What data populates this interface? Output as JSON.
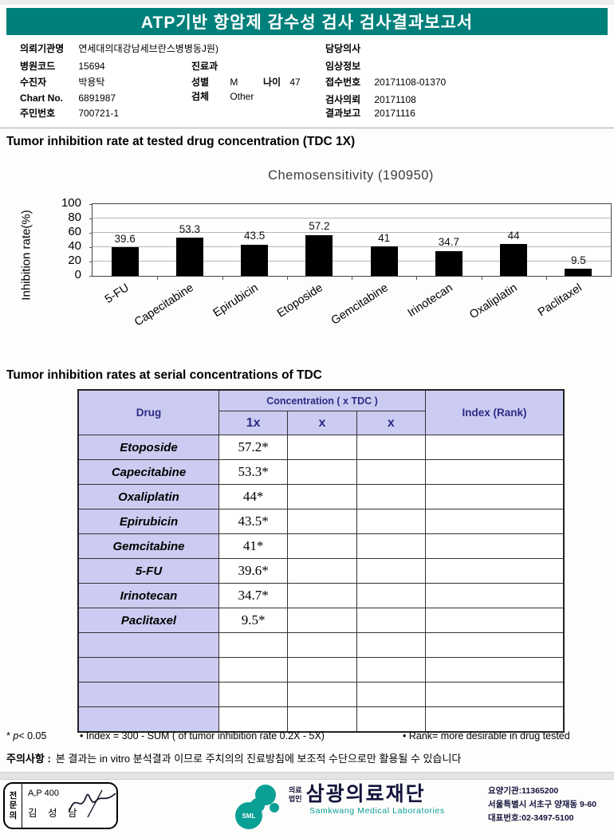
{
  "header": {
    "title": "ATP기반 항암제 감수성 검사 검사결과보고서"
  },
  "patient": {
    "org_label": "의뢰기관명",
    "org_value": "연세대의대강남세브란스병병동J원)",
    "hospital_code_label": "병원코드",
    "hospital_code_value": "15694",
    "patient_label": "수진자",
    "patient_value": "박용탁",
    "chart_no_label": "Chart No.",
    "chart_no_value": "6891987",
    "resident_label": "주민번호",
    "resident_value": "700721-1",
    "dept_label": "진료과",
    "dept_value": "",
    "sex_label": "성별",
    "sex_value": "M",
    "age_label": "나이",
    "age_value": "47",
    "specimen_label": "검체",
    "specimen_value": "Other",
    "doctor_label": "담당의사",
    "doctor_value": "",
    "clinical_label": "임상정보",
    "clinical_value": "",
    "receipt_label": "접수번호",
    "receipt_value": "20171108-01370",
    "request_label": "검사의뢰",
    "request_value": "20171108",
    "report_label": "결과보고",
    "report_value": "20171116"
  },
  "section1_title": "Tumor inhibition rate at tested drug concentration (TDC 1X)",
  "chart_data": {
    "type": "bar",
    "title": "Chemosensitivity (190950)",
    "categories": [
      "5-FU",
      "Capecitabine",
      "Epirubicin",
      "Etoposide",
      "Gemcitabine",
      "Irinotecan",
      "Oxaliplatin",
      "Paclitaxel"
    ],
    "values": [
      39.6,
      53.3,
      43.5,
      57.2,
      41,
      34.7,
      44,
      9.5
    ],
    "xlabel": "",
    "ylabel": "Inhibition rate(%)",
    "yticks": [
      0,
      20,
      40,
      60,
      80,
      100
    ],
    "ylim": [
      0,
      100
    ],
    "bar_color": "#000000",
    "grid": true,
    "legend": false
  },
  "section2_title": "Tumor inhibition rates at serial concentrations of TDC",
  "table": {
    "col_drug": "Drug",
    "col_concentration": "Concentration ( x TDC )",
    "col_index": "Index (Rank)",
    "sub_cols": [
      "1x",
      "x",
      "x"
    ],
    "rows": [
      {
        "drug": "Etoposide",
        "c1": "57.2*",
        "c2": "",
        "c3": "",
        "index": ""
      },
      {
        "drug": "Capecitabine",
        "c1": "53.3*",
        "c2": "",
        "c3": "",
        "index": ""
      },
      {
        "drug": "Oxaliplatin",
        "c1": "44*",
        "c2": "",
        "c3": "",
        "index": ""
      },
      {
        "drug": "Epirubicin",
        "c1": "43.5*",
        "c2": "",
        "c3": "",
        "index": ""
      },
      {
        "drug": "Gemcitabine",
        "c1": "41*",
        "c2": "",
        "c3": "",
        "index": ""
      },
      {
        "drug": "5-FU",
        "c1": "39.6*",
        "c2": "",
        "c3": "",
        "index": ""
      },
      {
        "drug": "Irinotecan",
        "c1": "34.7*",
        "c2": "",
        "c3": "",
        "index": ""
      },
      {
        "drug": "Paclitaxel",
        "c1": "9.5*",
        "c2": "",
        "c3": "",
        "index": ""
      },
      {
        "drug": "",
        "c1": "",
        "c2": "",
        "c3": "",
        "index": ""
      },
      {
        "drug": "",
        "c1": "",
        "c2": "",
        "c3": "",
        "index": ""
      },
      {
        "drug": "",
        "c1": "",
        "c2": "",
        "c3": "",
        "index": ""
      },
      {
        "drug": "",
        "c1": "",
        "c2": "",
        "c3": "",
        "index": ""
      }
    ]
  },
  "notes": {
    "p_star": "* ",
    "p_italic": "p",
    "p_rest": "< 0.05",
    "index_note": "• Index = 300 - SUM ( of tumor inhibition rate 0.2X  -  5X)",
    "rank_note": "• Rank= more desirable in drug tested",
    "caution_label": "주의사항 :",
    "caution_text": "본 결과는 in vitro 분석결과 이므로 주치의의 진료방침에 보조적 수단으로만 활용될 수 있습니다"
  },
  "footer": {
    "stamp_role_char1": "전",
    "stamp_role_char2": "문",
    "stamp_role_char3": "의",
    "stamp_line1": "A,P 400",
    "stamp_line2": "김 성 남",
    "logo_text": "SML",
    "org_type_line1": "의료",
    "org_type_line2": "법인",
    "org_name": "삼광의료재단",
    "org_name_en": "Samkwang Medical Laboratories",
    "info1": "요양기관:11365200",
    "info2": "서울특별시 서초구 양재동 9-60",
    "info3": "대표번호:02-3497-5100"
  },
  "colors": {
    "header_teal": "#00807B",
    "logo_teal": "#0AA095",
    "table_header_bg": "#CCCCF2",
    "table_header_text": "#2B2B85",
    "bar_black": "#000000"
  }
}
